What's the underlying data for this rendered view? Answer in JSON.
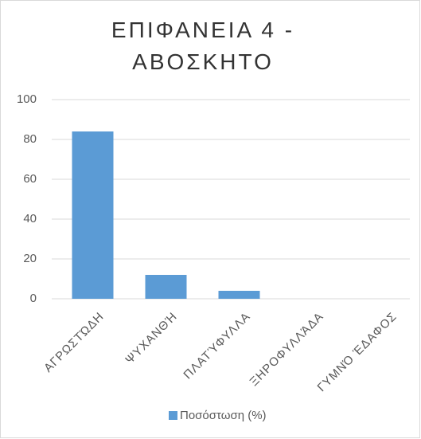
{
  "chart_data": {
    "type": "bar",
    "title": "ΕΠΙΦΑΝΕΙΑ 4 - ΑΒΟΣΚΗΤΟ",
    "categories": [
      "ΑΓΡΩΣΤΏΔΗ",
      "ΨΥΧΑΝΘΉ",
      "ΠΛΑΤΎΦΥΛΛΑ",
      "ΞΗΡΟΦΥΛΛΆΔΑ",
      "ΓΥΜΝΌ ΈΔΑΦΟΣ"
    ],
    "series": [
      {
        "name": "Ποσόστωση (%)",
        "color": "#5b9bd5",
        "values": [
          84,
          12,
          4,
          0,
          0
        ]
      }
    ],
    "ylim": [
      0,
      100
    ],
    "yticks": [
      0,
      20,
      40,
      60,
      80,
      100
    ],
    "grid": true,
    "legend": "bottom"
  }
}
